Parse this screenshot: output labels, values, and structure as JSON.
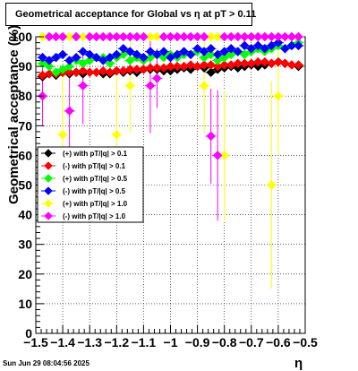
{
  "title": "Geometrical acceptance for Global vs    η  at pT > 0.11",
  "footer": "Sun Jun 29 08:04:56 2025",
  "chart_data": {
    "type": "scatter",
    "xlabel": "η",
    "ylabel": "Geometrical acceptance (%)",
    "xlim": [
      -1.5,
      -0.5
    ],
    "ylim": [
      0,
      100
    ],
    "xticks": [
      -1.5,
      -1.4,
      -1.3,
      -1.2,
      -1.1,
      -1,
      -0.9,
      -0.8,
      -0.7,
      -0.6,
      -0.5
    ],
    "xtick_labels": [
      "−1.5",
      "−1.4",
      "−1.3",
      "−1.2",
      "−1.1",
      "−1",
      "−0.9",
      "−0.8",
      "−0.7",
      "−0.6",
      "−0.5"
    ],
    "yticks": [
      0,
      10,
      20,
      30,
      40,
      50,
      60,
      70,
      80,
      90,
      100
    ],
    "grid": true,
    "legend_position": "left-middle",
    "series": [
      {
        "name": "(+) with pT/|q| > 0.1",
        "color": "#000000",
        "marker": "diamond",
        "x": [
          -1.475,
          -1.45,
          -1.425,
          -1.4,
          -1.375,
          -1.35,
          -1.325,
          -1.3,
          -1.275,
          -1.25,
          -1.225,
          -1.2,
          -1.175,
          -1.15,
          -1.125,
          -1.1,
          -1.075,
          -1.05,
          -1.025,
          -1.0,
          -0.975,
          -0.95,
          -0.925,
          -0.9,
          -0.875,
          -0.85,
          -0.825,
          -0.8,
          -0.775,
          -0.75,
          -0.725,
          -0.7,
          -0.675,
          -0.65,
          -0.625,
          -0.6,
          -0.575,
          -0.55,
          -0.525
        ],
        "y": [
          86.5,
          87.5,
          87,
          88,
          87.5,
          88,
          87.5,
          88,
          88,
          87.5,
          87.5,
          88.5,
          88,
          88.5,
          88,
          89,
          89,
          89,
          88.5,
          88.5,
          89,
          89.5,
          89,
          90,
          89.5,
          88,
          89,
          89.5,
          90,
          89.5,
          90,
          90.5,
          90,
          90.5,
          91,
          91.5,
          91,
          90.5,
          90
        ]
      },
      {
        "name": "(-) with pT/|q| > 0.1",
        "color": "#ff0000",
        "marker": "diamond",
        "x": [
          -1.475,
          -1.45,
          -1.425,
          -1.4,
          -1.375,
          -1.35,
          -1.325,
          -1.3,
          -1.275,
          -1.25,
          -1.225,
          -1.2,
          -1.175,
          -1.15,
          -1.125,
          -1.1,
          -1.075,
          -1.05,
          -1.025,
          -1.0,
          -0.975,
          -0.95,
          -0.925,
          -0.9,
          -0.875,
          -0.85,
          -0.825,
          -0.8,
          -0.775,
          -0.75,
          -0.725,
          -0.7,
          -0.675,
          -0.65,
          -0.625,
          -0.6,
          -0.575,
          -0.55,
          -0.525
        ],
        "y": [
          87,
          87.5,
          87.5,
          88,
          88,
          88,
          88.5,
          88,
          88,
          88.5,
          88,
          88.5,
          88.5,
          89,
          89,
          89,
          89.5,
          89.5,
          89.5,
          90,
          90,
          90,
          90.5,
          90,
          90.5,
          90.5,
          90,
          90.5,
          90.5,
          91,
          91,
          91,
          91.5,
          91.5,
          91,
          91.5,
          91,
          90.5,
          90.5
        ]
      },
      {
        "name": "(+) with pT/|q| > 0.5",
        "color": "#00ff00",
        "marker": "diamond",
        "x": [
          -1.475,
          -1.45,
          -1.425,
          -1.4,
          -1.375,
          -1.35,
          -1.325,
          -1.3,
          -1.275,
          -1.25,
          -1.225,
          -1.2,
          -1.175,
          -1.15,
          -1.125,
          -1.1,
          -1.075,
          -1.05,
          -1.025,
          -1.0,
          -0.975,
          -0.95,
          -0.925,
          -0.9,
          -0.875,
          -0.85,
          -0.825,
          -0.8,
          -0.775,
          -0.75,
          -0.725,
          -0.7,
          -0.675,
          -0.65,
          -0.625,
          -0.6,
          -0.575,
          -0.55,
          -0.525
        ],
        "y": [
          91,
          90,
          88,
          89,
          90,
          92,
          91,
          92,
          93,
          93,
          91,
          93,
          94,
          92,
          93,
          92,
          93,
          94,
          93,
          94,
          93,
          94,
          94,
          95,
          93,
          94,
          92,
          93,
          94,
          95,
          94,
          95,
          96,
          95,
          96,
          97,
          96,
          97,
          98
        ]
      },
      {
        "name": "(-) with pT/|q| > 0.5",
        "color": "#0000ff",
        "marker": "diamond",
        "x": [
          -1.475,
          -1.45,
          -1.425,
          -1.4,
          -1.375,
          -1.35,
          -1.325,
          -1.3,
          -1.275,
          -1.25,
          -1.225,
          -1.2,
          -1.175,
          -1.15,
          -1.125,
          -1.1,
          -1.075,
          -1.05,
          -1.025,
          -1.0,
          -0.975,
          -0.95,
          -0.925,
          -0.9,
          -0.875,
          -0.85,
          -0.825,
          -0.8,
          -0.775,
          -0.75,
          -0.725,
          -0.7,
          -0.675,
          -0.65,
          -0.625,
          -0.6,
          -0.575,
          -0.55,
          -0.525
        ],
        "y": [
          93,
          92,
          93,
          94,
          92,
          93,
          95,
          94,
          93,
          92,
          93,
          94,
          96,
          95,
          94,
          93,
          95,
          94,
          95,
          93,
          94,
          95,
          94,
          96,
          95,
          96,
          94,
          95,
          96,
          95,
          97,
          96,
          97,
          96,
          97,
          98,
          96,
          97,
          97
        ]
      },
      {
        "name": "(+) with pT/|q| > 1.0",
        "color": "#ffff00",
        "marker": "diamond",
        "x": [
          -1.475,
          -1.45,
          -1.425,
          -1.4,
          -1.375,
          -1.35,
          -1.325,
          -1.3,
          -1.275,
          -1.25,
          -1.225,
          -1.2,
          -1.175,
          -1.15,
          -1.125,
          -1.1,
          -1.075,
          -1.05,
          -1.025,
          -1.0,
          -0.975,
          -0.95,
          -0.925,
          -0.9,
          -0.875,
          -0.85,
          -0.825,
          -0.8,
          -0.775,
          -0.75,
          -0.725,
          -0.7,
          -0.675,
          -0.65,
          -0.625,
          -0.6,
          -0.575,
          -0.55,
          -0.525
        ],
        "y": [
          100,
          100,
          100,
          67,
          100,
          100,
          100,
          100,
          100,
          100,
          100,
          67,
          100,
          83.5,
          100,
          100,
          100,
          100,
          100,
          100,
          100,
          100,
          100,
          100,
          83.5,
          100,
          100,
          60,
          100,
          100,
          100,
          100,
          100,
          100,
          50,
          80,
          100,
          100,
          100
        ],
        "err": [
          0,
          0,
          0,
          20,
          0,
          0,
          0,
          0,
          0,
          0,
          0,
          20,
          0,
          16,
          0,
          0,
          0,
          0,
          0,
          0,
          0,
          0,
          0,
          0,
          16,
          0,
          0,
          22,
          0,
          0,
          0,
          0,
          0,
          0,
          35,
          20,
          0,
          0,
          0
        ]
      },
      {
        "name": "(-) with pT/|q| > 1.0",
        "color": "#ff00ff",
        "marker": "diamond",
        "x": [
          -1.475,
          -1.45,
          -1.425,
          -1.4,
          -1.375,
          -1.35,
          -1.325,
          -1.3,
          -1.275,
          -1.25,
          -1.225,
          -1.2,
          -1.175,
          -1.15,
          -1.125,
          -1.1,
          -1.075,
          -1.05,
          -1.025,
          -1.0,
          -0.975,
          -0.95,
          -0.925,
          -0.9,
          -0.875,
          -0.85,
          -0.825,
          -0.8,
          -0.775,
          -0.75,
          -0.725,
          -0.7,
          -0.675,
          -0.65,
          -0.625,
          -0.6,
          -0.575,
          -0.55,
          -0.525
        ],
        "y": [
          80,
          100,
          100,
          100,
          75,
          100,
          83.5,
          100,
          100,
          100,
          100,
          100,
          100,
          100,
          100,
          100,
          83.5,
          86,
          100,
          100,
          100,
          100,
          100,
          100,
          100,
          66.5,
          60,
          100,
          100,
          100,
          100,
          100,
          100,
          100,
          100,
          100,
          100,
          100,
          100
        ],
        "err": [
          10,
          0,
          0,
          0,
          16,
          0,
          13,
          0,
          0,
          0,
          0,
          0,
          0,
          0,
          0,
          0,
          16,
          10,
          0,
          0,
          0,
          0,
          0,
          0,
          0,
          16,
          22,
          0,
          0,
          0,
          0,
          0,
          0,
          0,
          0,
          0,
          0,
          0,
          0
        ]
      }
    ]
  }
}
